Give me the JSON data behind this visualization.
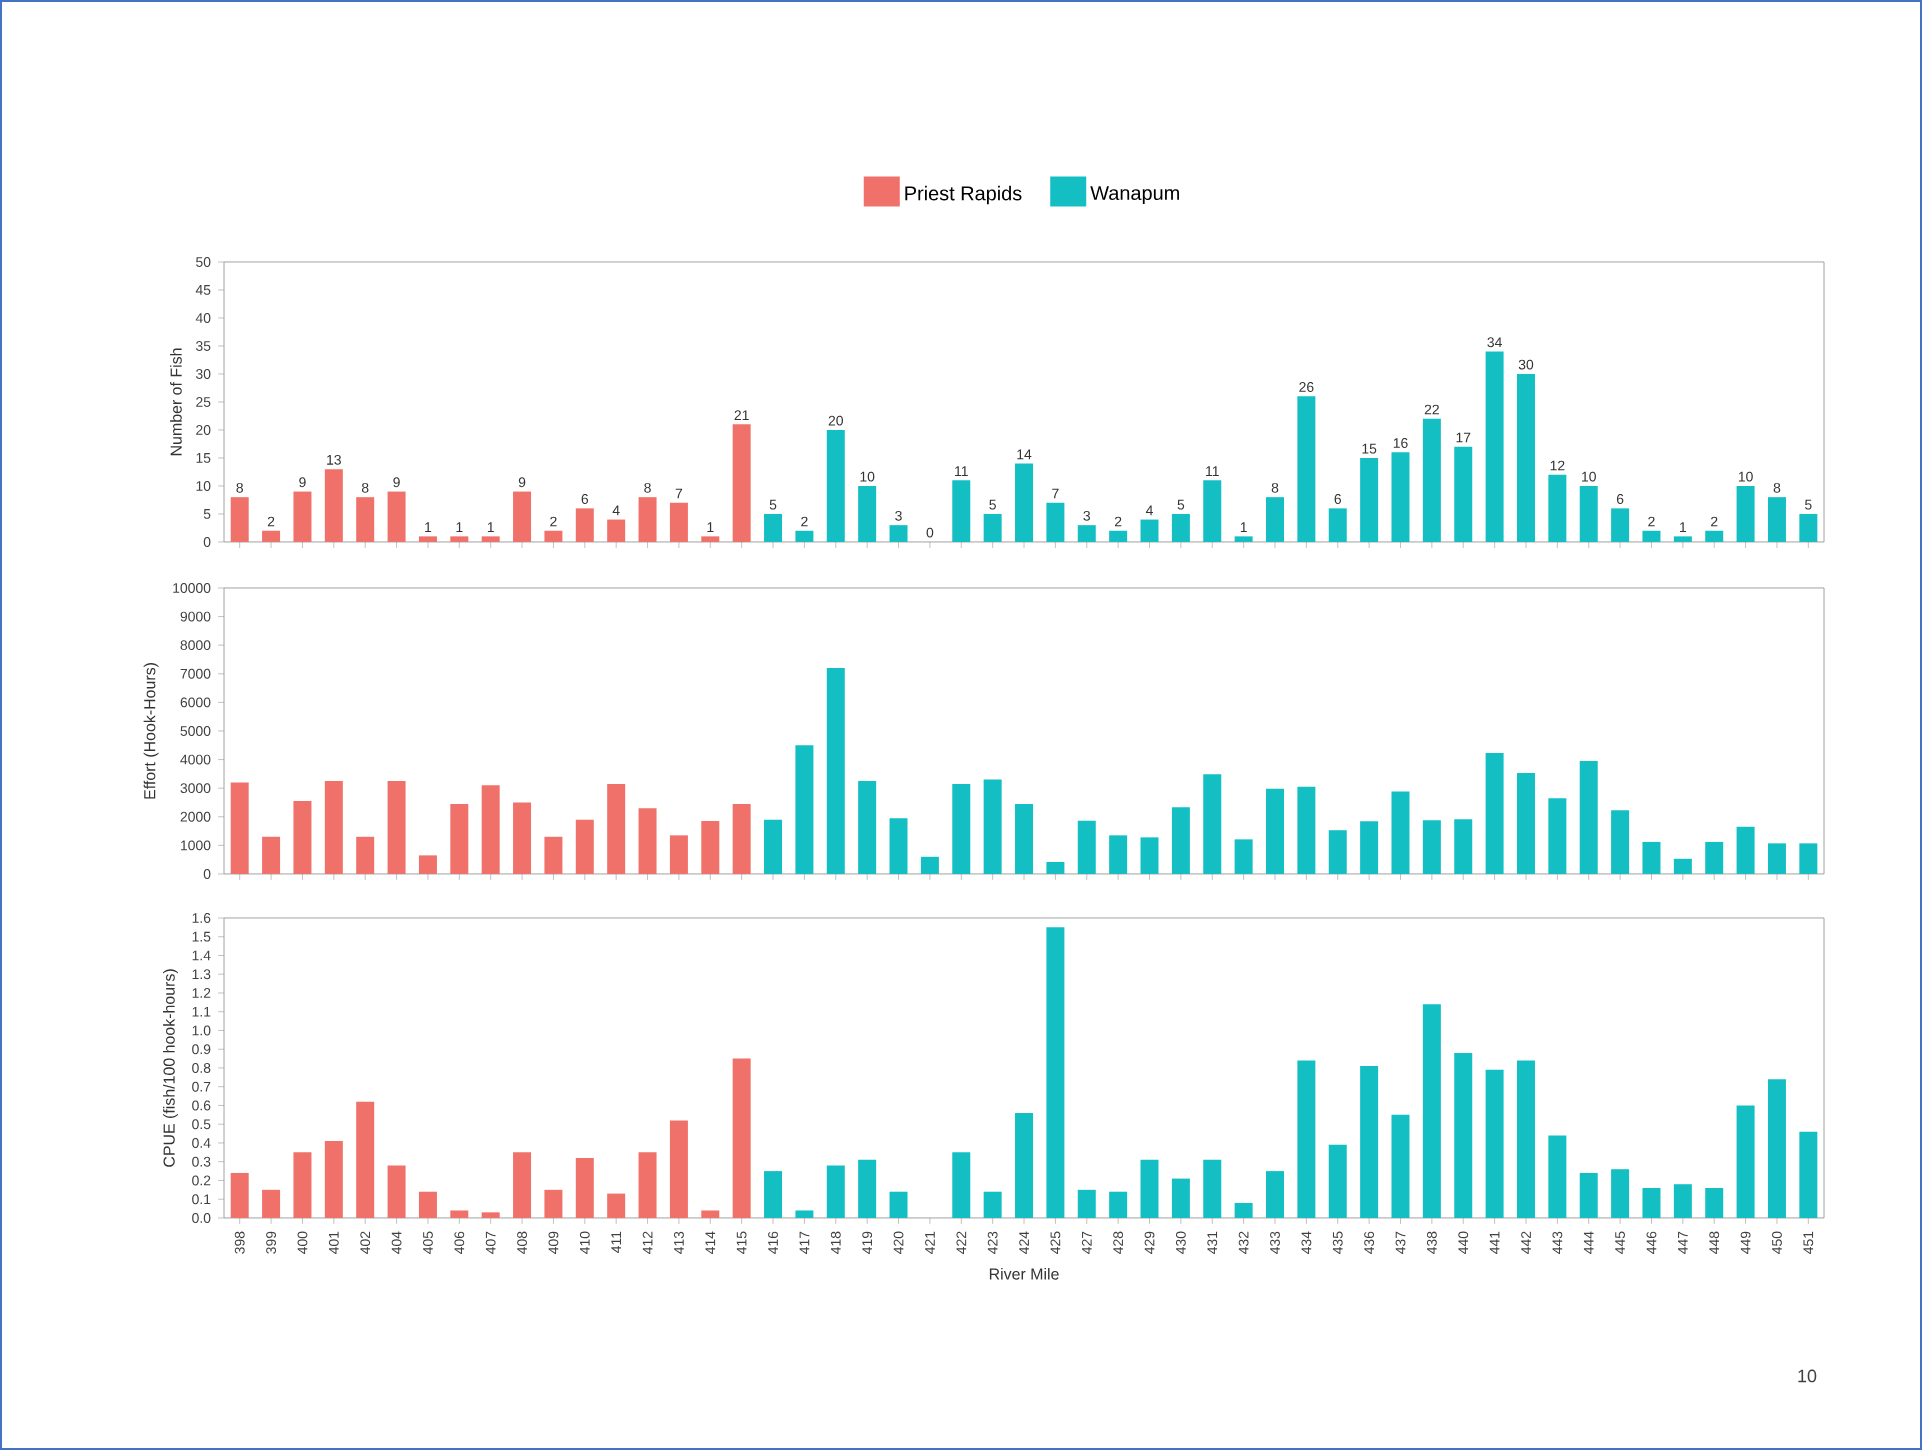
{
  "chart_data": [
    {
      "type": "bar",
      "ylabel": "Number of Fish",
      "legend": "top",
      "data_labels": true,
      "tick_labels": "y",
      "categories": [
        "398",
        "399",
        "400",
        "401",
        "402",
        "404",
        "405",
        "406",
        "407",
        "408",
        "409",
        "410",
        "411",
        "412",
        "413",
        "414",
        "415",
        "416",
        "417",
        "418",
        "419",
        "420",
        "421",
        "422",
        "423",
        "424",
        "425",
        "427",
        "428",
        "429",
        "430",
        "431",
        "432",
        "433",
        "434",
        "435",
        "436",
        "437",
        "438",
        "440",
        "441",
        "442",
        "443",
        "444",
        "445",
        "446",
        "447",
        "448",
        "449",
        "450",
        "451"
      ],
      "ylim": [
        0,
        50
      ],
      "yticks": [
        0,
        5,
        10,
        15,
        20,
        25,
        30,
        35,
        40,
        45,
        50
      ],
      "series": [
        {
          "name": "Priest Rapids",
          "color": "#f0716a",
          "values": [
            8,
            2,
            9,
            13,
            8,
            9,
            1,
            1,
            1,
            9,
            2,
            6,
            4,
            8,
            7,
            1,
            21,
            null,
            null,
            null,
            null,
            null,
            null,
            null,
            null,
            null,
            null,
            null,
            null,
            null,
            null,
            null,
            null,
            null,
            null,
            null,
            null,
            null,
            null,
            null,
            null,
            null,
            null,
            null,
            null,
            null,
            null,
            null,
            null,
            null,
            null
          ]
        },
        {
          "name": "Wanapum",
          "color": "#14bfc4",
          "values": [
            null,
            null,
            null,
            null,
            null,
            null,
            null,
            null,
            null,
            null,
            null,
            null,
            null,
            null,
            null,
            null,
            null,
            5,
            2,
            20,
            10,
            3,
            0,
            11,
            5,
            14,
            7,
            3,
            2,
            4,
            5,
            11,
            1,
            8,
            26,
            6,
            15,
            16,
            22,
            17,
            34,
            30,
            12,
            10,
            6,
            2,
            1,
            2,
            10,
            8,
            5
          ]
        }
      ]
    },
    {
      "type": "bar",
      "ylabel": "Effort (Hook-Hours)",
      "tick_labels": "y",
      "categories": [
        "398",
        "399",
        "400",
        "401",
        "402",
        "404",
        "405",
        "406",
        "407",
        "408",
        "409",
        "410",
        "411",
        "412",
        "413",
        "414",
        "415",
        "416",
        "417",
        "418",
        "419",
        "420",
        "421",
        "422",
        "423",
        "424",
        "425",
        "427",
        "428",
        "429",
        "430",
        "431",
        "432",
        "433",
        "434",
        "435",
        "436",
        "437",
        "438",
        "440",
        "441",
        "442",
        "443",
        "444",
        "445",
        "446",
        "447",
        "448",
        "449",
        "450",
        "451"
      ],
      "ylim": [
        0,
        10000
      ],
      "yticks": [
        0,
        1000,
        2000,
        3000,
        4000,
        5000,
        6000,
        7000,
        8000,
        9000,
        10000
      ],
      "series": [
        {
          "color": "#f0716a",
          "values": [
            3200,
            1300,
            2550,
            3250,
            1300,
            3250,
            650,
            2450,
            3100,
            2500,
            1300,
            1900,
            3150,
            2300,
            1350,
            1850,
            2450,
            null,
            null,
            null,
            null,
            null,
            null,
            null,
            null,
            null,
            null,
            null,
            null,
            null,
            null,
            null,
            null,
            null,
            null,
            null,
            null,
            null,
            null,
            null,
            null,
            null,
            null,
            null,
            null,
            null,
            null,
            null,
            null,
            null,
            null
          ]
        },
        {
          "color": "#14bfc4",
          "values": [
            null,
            null,
            null,
            null,
            null,
            null,
            null,
            null,
            null,
            null,
            null,
            null,
            null,
            null,
            null,
            null,
            null,
            1900,
            4500,
            7200,
            3250,
            1950,
            600,
            3150,
            3300,
            2450,
            420,
            1860,
            1350,
            1280,
            2330,
            3490,
            1210,
            2980,
            3050,
            1530,
            1840,
            2880,
            1880,
            1910,
            4230,
            3530,
            2650,
            3950,
            2230,
            1120,
            530,
            1120,
            1650,
            1070,
            1070
          ]
        }
      ]
    },
    {
      "type": "bar",
      "ylabel": "CPUE (fish/100 hook-hours)",
      "xlabel": "River Mile",
      "annotations": [
        "10"
      ],
      "categories": [
        "398",
        "399",
        "400",
        "401",
        "402",
        "404",
        "405",
        "406",
        "407",
        "408",
        "409",
        "410",
        "411",
        "412",
        "413",
        "414",
        "415",
        "416",
        "417",
        "418",
        "419",
        "420",
        "421",
        "422",
        "423",
        "424",
        "425",
        "427",
        "428",
        "429",
        "430",
        "431",
        "432",
        "433",
        "434",
        "435",
        "436",
        "437",
        "438",
        "440",
        "441",
        "442",
        "443",
        "444",
        "445",
        "446",
        "447",
        "448",
        "449",
        "450",
        "451"
      ],
      "ylim": [
        0,
        1.6
      ],
      "yticks": [
        {
          "value": 0,
          "label": "0.0"
        },
        0.1,
        0.2,
        0.3,
        0.4,
        0.5,
        0.6,
        0.7,
        0.8,
        0.9,
        {
          "value": 1,
          "label": "1.0"
        },
        1.1,
        1.2,
        1.3,
        1.4,
        1.5,
        1.6
      ],
      "series": [
        {
          "color": "#f0716a",
          "values": [
            0.24,
            0.15,
            0.35,
            0.41,
            0.62,
            0.28,
            0.14,
            0.04,
            0.03,
            0.35,
            0.15,
            0.32,
            0.13,
            0.35,
            0.52,
            0.04,
            0.85,
            null,
            null,
            null,
            null,
            null,
            null,
            null,
            null,
            null,
            null,
            null,
            null,
            null,
            null,
            null,
            null,
            null,
            null,
            null,
            null,
            null,
            null,
            null,
            null,
            null,
            null,
            null,
            null,
            null,
            null,
            null,
            null,
            null,
            null
          ]
        },
        {
          "color": "#14bfc4",
          "values": [
            null,
            null,
            null,
            null,
            null,
            null,
            null,
            null,
            null,
            null,
            null,
            null,
            null,
            null,
            null,
            null,
            null,
            0.25,
            0.04,
            0.28,
            0.31,
            0.14,
            0,
            0.35,
            0.14,
            0.56,
            1.55,
            0.15,
            0.14,
            0.31,
            0.21,
            0.31,
            0.08,
            0.25,
            0.84,
            0.39,
            0.81,
            0.55,
            1.14,
            0.88,
            0.79,
            0.84,
            0.44,
            0.24,
            0.26,
            0.16,
            0.18,
            0.16,
            0.6,
            0.74,
            0.46
          ]
        }
      ]
    }
  ]
}
